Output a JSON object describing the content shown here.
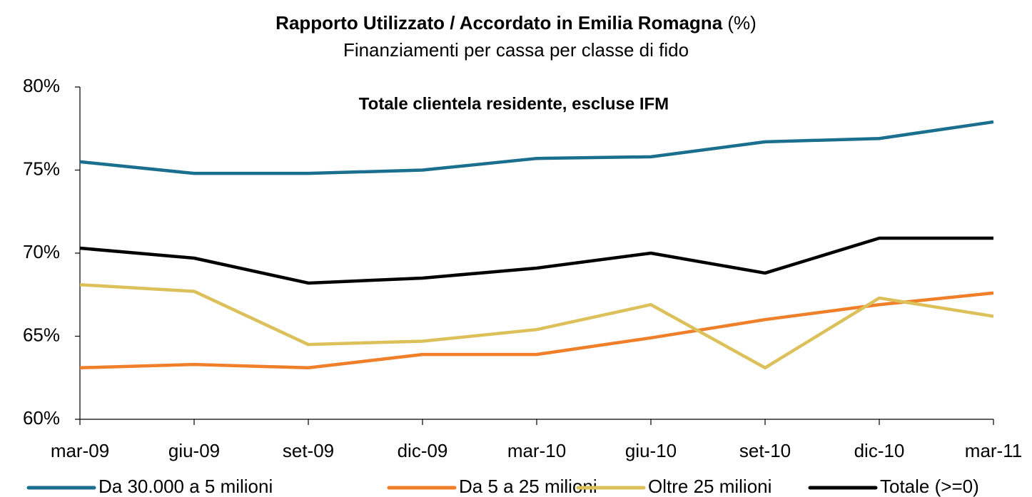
{
  "chart_data": {
    "type": "line",
    "title": "Rapporto Utilizzato / Accordato in Emilia Romagna",
    "title_unit": "(%)",
    "subtitle": "Finanziamenti per cassa per classe di fido",
    "annotation": "Totale clientela residente, escluse IFM",
    "categories": [
      "mar-09",
      "giu-09",
      "set-09",
      "dic-09",
      "mar-10",
      "giu-10",
      "set-10",
      "dic-10",
      "mar-11"
    ],
    "series": [
      {
        "name": "Da 30.000 a 5 milioni",
        "color": "#1a6e8e",
        "values": [
          75.5,
          74.8,
          74.8,
          75.0,
          75.7,
          75.8,
          76.7,
          76.9,
          77.9
        ]
      },
      {
        "name": "Da 5 a 25 milioni",
        "color": "#f07f2a",
        "values": [
          63.1,
          63.3,
          63.1,
          63.9,
          63.9,
          64.9,
          66.0,
          66.9,
          67.6
        ]
      },
      {
        "name": "Oltre 25 milioni",
        "color": "#dcc05a",
        "values": [
          68.1,
          67.7,
          64.5,
          64.7,
          65.4,
          66.9,
          63.1,
          67.3,
          66.2
        ]
      },
      {
        "name": "Totale (>=0)",
        "color": "#000000",
        "values": [
          70.3,
          69.7,
          68.2,
          68.5,
          69.1,
          70.0,
          68.8,
          70.9,
          70.9
        ]
      }
    ],
    "ylim": [
      60,
      80
    ],
    "yticks": [
      {
        "value": 60,
        "label": "60%"
      },
      {
        "value": 65,
        "label": "65%"
      },
      {
        "value": 70,
        "label": "70%"
      },
      {
        "value": 75,
        "label": "75%"
      },
      {
        "value": 80,
        "label": "80%"
      }
    ],
    "grid": false,
    "legend": "bottom"
  }
}
